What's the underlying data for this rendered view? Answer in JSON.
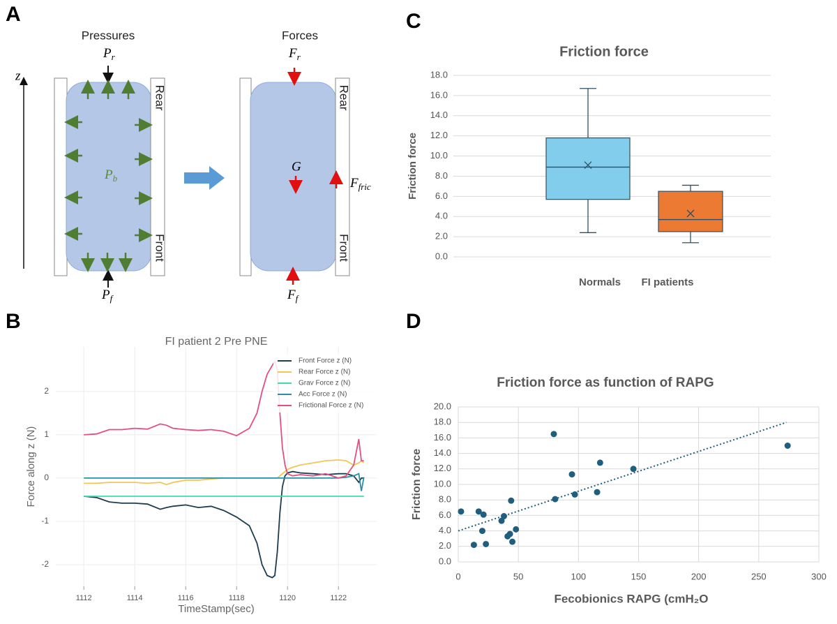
{
  "panel_labels": [
    "A",
    "B",
    "C",
    "D"
  ],
  "diagram": {
    "left_title": "Pressures",
    "right_title": "Forces",
    "axis": "z",
    "rear": "Rear",
    "front": "Front",
    "P_r": {
      "main": "P",
      "sub": "r"
    },
    "P_f": {
      "main": "P",
      "sub": "f"
    },
    "P_b": {
      "main": "P",
      "sub": "b"
    },
    "F_r": {
      "main": "F",
      "sub": "r"
    },
    "F_f": {
      "main": "F",
      "sub": "f"
    },
    "G": "G",
    "F_fric": {
      "main": "F",
      "sub": "fric"
    }
  },
  "chart_data": [
    {
      "type": "line",
      "title": "FI patient 2 Pre PNE",
      "x_label": "TimeStamp(sec)",
      "y_label": "Force along z (N)",
      "x": [
        1112,
        1112.5,
        1113,
        1113.5,
        1114,
        1114.5,
        1115,
        1115.25,
        1115.5,
        1116,
        1116.5,
        1117,
        1117.5,
        1118,
        1118.5,
        1118.8,
        1119,
        1119.2,
        1119.4,
        1119.5,
        1119.6,
        1119.7,
        1119.8,
        1119.9,
        1120,
        1120.2,
        1120.5,
        1121,
        1121.5,
        1122,
        1122.3,
        1122.6,
        1122.8,
        1122.9,
        1123
      ],
      "series": [
        {
          "name": "Front Force z (N)",
          "color": "#1d3c4e",
          "values": [
            -0.42,
            -0.45,
            -0.55,
            -0.58,
            -0.58,
            -0.6,
            -0.72,
            -0.68,
            -0.65,
            -0.62,
            -0.68,
            -0.65,
            -0.75,
            -0.9,
            -1.1,
            -1.5,
            -2.0,
            -2.25,
            -2.3,
            -2.25,
            -1.7,
            -0.8,
            -0.2,
            0.05,
            0.12,
            0.15,
            0.12,
            0.1,
            0.08,
            0.1,
            0.1,
            0.05,
            -0.1,
            0.0,
            0.0
          ]
        },
        {
          "name": "Rear Force z (N)",
          "color": "#f3c653",
          "values": [
            -0.12,
            -0.12,
            -0.1,
            -0.1,
            -0.1,
            -0.12,
            -0.1,
            -0.15,
            -0.1,
            -0.05,
            -0.05,
            -0.02,
            0.0,
            0.0,
            0.0,
            0.0,
            0.0,
            0.0,
            0.0,
            0.0,
            0.0,
            0.05,
            0.1,
            0.15,
            0.2,
            0.25,
            0.3,
            0.35,
            0.4,
            0.42,
            0.4,
            0.3,
            0.35,
            0.4,
            0.35
          ]
        },
        {
          "name": "Grav Force z (N)",
          "color": "#3ddbb0",
          "values": [
            -0.42,
            -0.42,
            -0.42,
            -0.42,
            -0.42,
            -0.42,
            -0.42,
            -0.42,
            -0.42,
            -0.42,
            -0.42,
            -0.42,
            -0.42,
            -0.42,
            -0.42,
            -0.42,
            -0.42,
            -0.42,
            -0.42,
            -0.42,
            -0.42,
            -0.42,
            -0.42,
            -0.42,
            -0.42,
            -0.42,
            -0.42,
            -0.42,
            -0.42,
            -0.42,
            -0.42,
            -0.42,
            -0.42,
            -0.42,
            -0.42
          ]
        },
        {
          "name": "Acc Force z (N)",
          "color": "#2a8fa3",
          "values": [
            0.0,
            0.0,
            0.0,
            0.0,
            0.0,
            0.0,
            0.0,
            0.0,
            0.0,
            0.0,
            0.0,
            0.0,
            0.0,
            0.0,
            0.0,
            0.0,
            0.0,
            0.0,
            0.0,
            0.0,
            0.0,
            0.0,
            0.0,
            0.0,
            0.0,
            0.0,
            0.0,
            0.0,
            0.0,
            0.0,
            0.02,
            0.05,
            0.1,
            -0.3,
            0.02
          ]
        },
        {
          "name": "Frictional Force z (N)",
          "color": "#e4507c",
          "values": [
            1.0,
            1.02,
            1.12,
            1.12,
            1.15,
            1.13,
            1.25,
            1.22,
            1.15,
            1.12,
            1.1,
            1.12,
            1.08,
            0.98,
            1.15,
            1.5,
            2.0,
            2.4,
            2.6,
            2.7,
            2.5,
            1.5,
            0.7,
            0.3,
            0.1,
            0.05,
            0.08,
            0.05,
            0.1,
            0.0,
            0.05,
            0.3,
            0.9,
            0.4,
            0.4
          ]
        }
      ],
      "xlim": [
        1110.9,
        1123.5
      ],
      "ylim": [
        -2.5,
        3.03
      ],
      "xticks": [
        1112,
        1114,
        1116,
        1118,
        1120,
        1122
      ],
      "yticks": [
        -2,
        -1,
        0,
        1,
        2
      ],
      "grid": true,
      "legend": "upper right"
    },
    {
      "type": "box",
      "title": "Friction  force",
      "y_label": "Friction force",
      "categories": [
        "Normals",
        "FI patients"
      ],
      "boxes": [
        {
          "min": 2.4,
          "q1": 5.7,
          "median": 8.9,
          "q3": 11.8,
          "max": 16.7,
          "mean": 9.1,
          "color": "#83cdec"
        },
        {
          "min": 1.4,
          "q1": 2.5,
          "median": 3.7,
          "q3": 6.5,
          "max": 7.1,
          "mean": 4.3,
          "color": "#ec7a32"
        }
      ],
      "ylim": [
        0,
        18
      ],
      "yticks": [
        {
          "value": 0,
          "label": "0.0"
        },
        {
          "value": 2,
          "label": "2.0"
        },
        {
          "value": 4,
          "label": "4.0"
        },
        {
          "value": 6,
          "label": "6.0"
        },
        {
          "value": 8,
          "label": "8.0"
        },
        {
          "value": 10,
          "label": "10.0"
        },
        {
          "value": 12,
          "label": "12.0"
        },
        {
          "value": 14,
          "label": "14.0"
        },
        {
          "value": 16,
          "label": "16.0"
        },
        {
          "value": 18,
          "label": "18.0"
        }
      ],
      "grid": true
    },
    {
      "type": "scatter",
      "title": "Friction force as function of RAPG",
      "x_label": "Fecobionics RAPG (cmH₂O",
      "y_label": "Friction force",
      "color": "#1f5f7d",
      "x": [
        2.3,
        13,
        17,
        21,
        20,
        23,
        36,
        38,
        44,
        41,
        43,
        45,
        48,
        79.5,
        80.6,
        94.6,
        97,
        115.5,
        118,
        145.7,
        274
      ],
      "values": [
        6.5,
        2.2,
        6.5,
        6.1,
        4.0,
        2.3,
        5.3,
        5.9,
        7.9,
        3.3,
        3.6,
        2.6,
        4.2,
        16.5,
        8.1,
        11.3,
        8.7,
        9.0,
        12.8,
        12.0,
        15.0
      ],
      "trendline": {
        "x": [
          0,
          273
        ],
        "values": [
          4.0,
          18.0
        ]
      },
      "xlim": [
        0,
        300
      ],
      "ylim": [
        0,
        20
      ],
      "xticks": [
        0,
        50,
        100,
        150,
        200,
        250,
        300
      ],
      "yticks": [
        {
          "value": 0,
          "label": "0.0"
        },
        {
          "value": 2,
          "label": "2.0"
        },
        {
          "value": 4,
          "label": "4.0"
        },
        {
          "value": 6,
          "label": "6.0"
        },
        {
          "value": 8,
          "label": "8.0"
        },
        {
          "value": 10,
          "label": "10.0"
        },
        {
          "value": 12,
          "label": "12.0"
        },
        {
          "value": 14,
          "label": "14.0"
        },
        {
          "value": 16,
          "label": "16.0"
        },
        {
          "value": 18,
          "label": "18.0"
        },
        {
          "value": 20,
          "label": "20.0"
        }
      ],
      "grid": true
    }
  ]
}
